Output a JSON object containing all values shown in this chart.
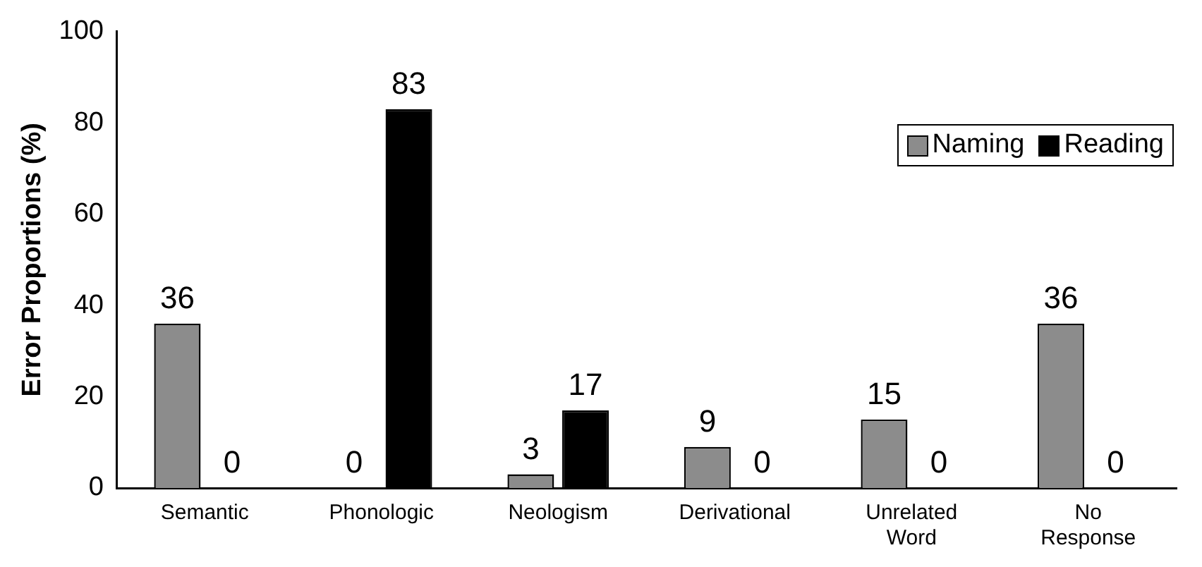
{
  "chart_data": {
    "type": "bar",
    "ylabel": "Error Proportions (%)",
    "categories": [
      "Semantic",
      "Phonologic",
      "Neologism",
      "Derivational",
      "Unrelated Word",
      "No Response"
    ],
    "series": [
      {
        "name": "Naming",
        "color": "#8c8c8c",
        "values": [
          36,
          0,
          3,
          9,
          15,
          36
        ]
      },
      {
        "name": "Reading",
        "color": "#000000",
        "values": [
          0,
          83,
          17,
          0,
          0,
          0
        ]
      }
    ],
    "ylim": [
      0,
      100
    ],
    "yticks": [
      0,
      20,
      40,
      60,
      80,
      100
    ],
    "grid": false,
    "legend": "top right",
    "data_labels": true
  }
}
